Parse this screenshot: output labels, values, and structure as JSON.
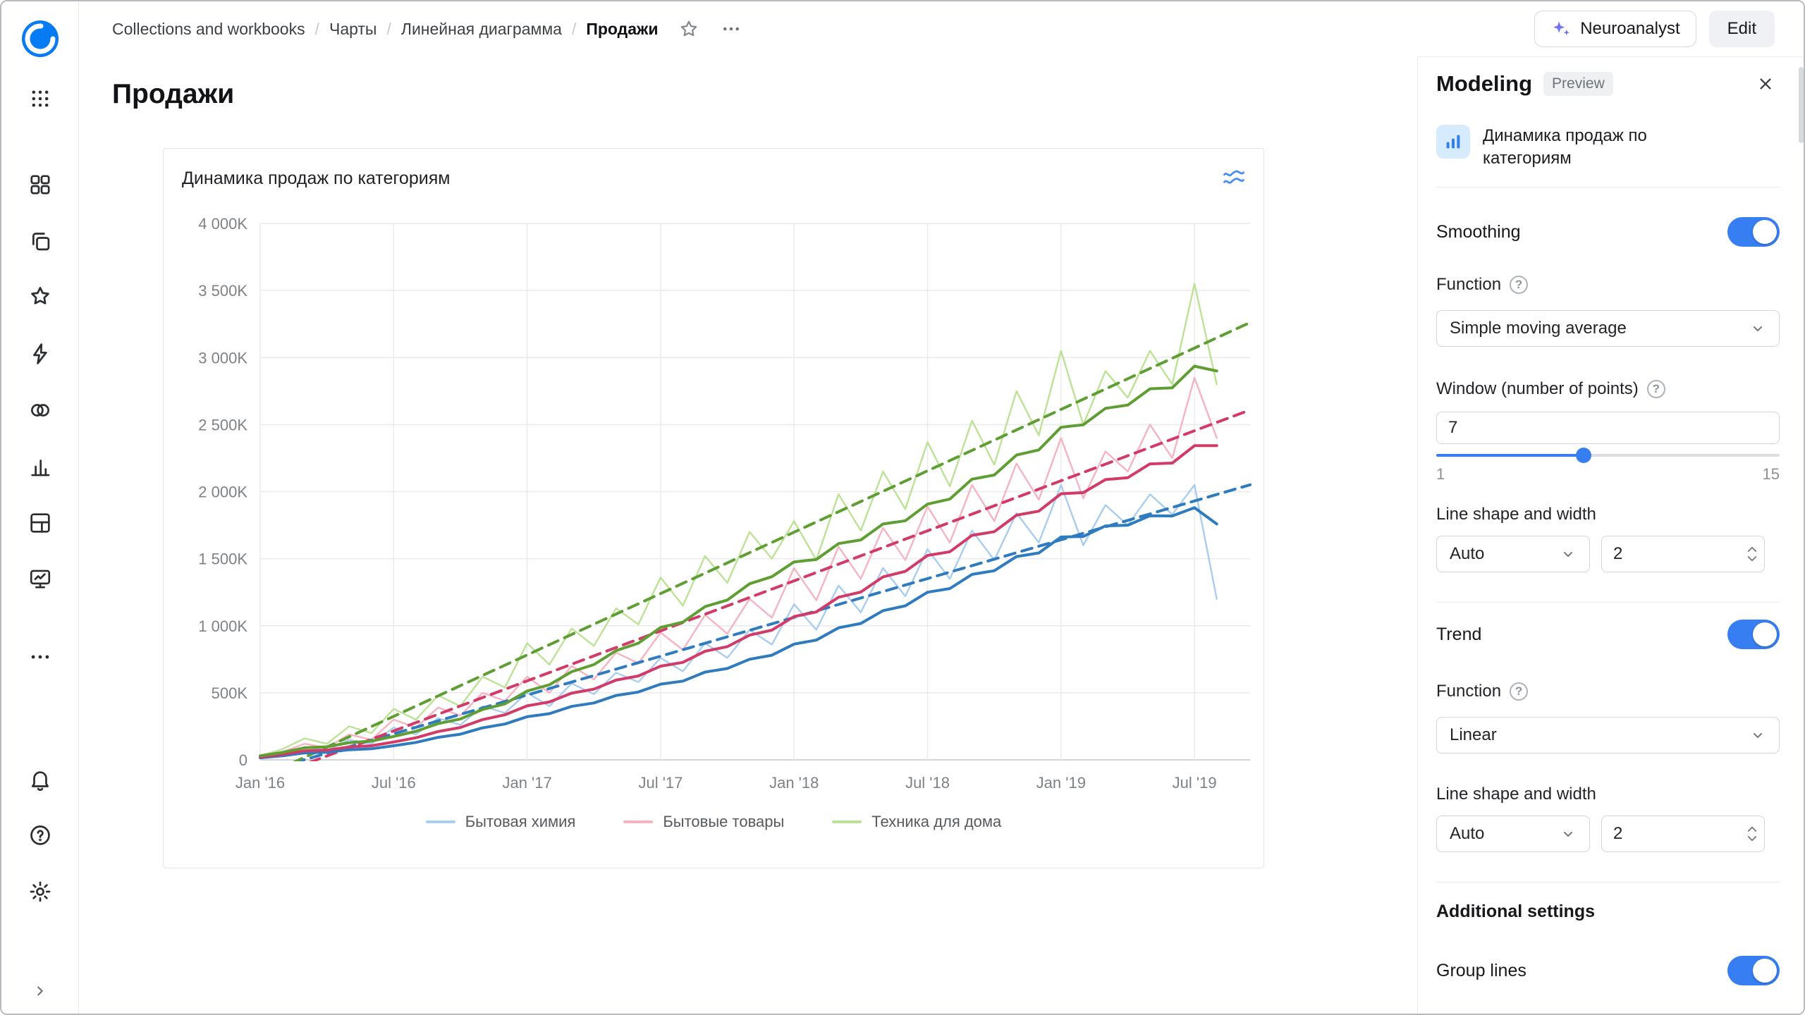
{
  "app": {
    "colors": {
      "accent": "#377ef2",
      "icon_blue": "#2f80ed",
      "divider": "#ececef"
    }
  },
  "sidebar": {
    "nav_icons": [
      "apps-grid",
      "collections",
      "workbooks",
      "favorites",
      "connections",
      "datasets",
      "charts",
      "dashboards",
      "reports",
      "more"
    ],
    "bottom_icons": [
      "notifications",
      "help",
      "settings",
      "collapse"
    ]
  },
  "header": {
    "breadcrumb": [
      "Collections and workbooks",
      "Чарты",
      "Линейная диаграмма",
      "Продажи"
    ],
    "neuroanalyst_label": "Neuroanalyst",
    "edit_label": "Edit"
  },
  "page": {
    "title": "Продажи"
  },
  "chart_data": {
    "type": "line",
    "title": "Динамика продаж по категориям",
    "x_start": "Jan 2016",
    "x_interval": "month",
    "x_tick_labels": [
      "Jan '16",
      "Jul '16",
      "Jan '17",
      "Jul '17",
      "Jan '18",
      "Jul '18",
      "Jan '19",
      "Jul '19"
    ],
    "x_tick_month_indices": [
      0,
      6,
      12,
      18,
      24,
      30,
      36,
      42
    ],
    "x_extent_months": 44.5,
    "y_tick_labels": [
      "0",
      "500K",
      "1 000K",
      "1 500K",
      "2 000K",
      "2 500K",
      "3 000K",
      "3 500K",
      "4 000K"
    ],
    "y_tick_values_k": [
      0,
      500,
      1000,
      1500,
      2000,
      2500,
      3000,
      3500,
      4000
    ],
    "ylim_k": [
      0,
      4000
    ],
    "grid": true,
    "legend_position": "bottom",
    "smoothing": {
      "function": "Simple moving average",
      "window": 7
    },
    "trend": {
      "function": "Linear"
    },
    "series": [
      {
        "name": "Бытовая химия",
        "color": "#a9cdef",
        "color_smoothed": "#2e7bbf",
        "values_k": [
          15,
          45,
          95,
          70,
          150,
          120,
          240,
          190,
          310,
          260,
          400,
          350,
          500,
          400,
          570,
          490,
          650,
          580,
          760,
          660,
          870,
          760,
          970,
          860,
          1160,
          970,
          1300,
          1100,
          1430,
          1220,
          1570,
          1350,
          1710,
          1490,
          1840,
          1620,
          2050,
          1600,
          1900,
          1750,
          1980,
          1830,
          2050,
          1200
        ]
      },
      {
        "name": "Бытовые товары",
        "color": "#f6b3c2",
        "color_smoothed": "#d23b68",
        "values_k": [
          20,
          60,
          120,
          90,
          190,
          150,
          300,
          240,
          390,
          330,
          500,
          440,
          620,
          500,
          700,
          600,
          800,
          720,
          950,
          820,
          1080,
          940,
          1200,
          1060,
          1430,
          1190,
          1590,
          1350,
          1730,
          1490,
          1890,
          1620,
          2050,
          1780,
          2210,
          1940,
          2400,
          1950,
          2300,
          2150,
          2500,
          2250,
          2850,
          2400
        ]
      },
      {
        "name": "Техника для дома",
        "color": "#bde295",
        "color_smoothed": "#5f9e33",
        "values_k": [
          30,
          80,
          160,
          120,
          250,
          200,
          380,
          300,
          480,
          400,
          620,
          540,
          870,
          710,
          980,
          850,
          1130,
          1010,
          1360,
          1150,
          1520,
          1320,
          1700,
          1500,
          1780,
          1490,
          1980,
          1710,
          2150,
          1870,
          2370,
          2040,
          2530,
          2200,
          2750,
          2420,
          3050,
          2500,
          2900,
          2700,
          3050,
          2800,
          3550,
          2800
        ]
      }
    ]
  },
  "panel": {
    "title": "Modeling",
    "badge": "Preview",
    "item": {
      "title": "Динамика продаж по категориям"
    },
    "smoothing": {
      "label": "Smoothing",
      "enabled": true,
      "function_label": "Function",
      "function_value": "Simple moving average",
      "window_label": "Window (number of points)",
      "window_value": "7",
      "window": 7,
      "window_min": 1,
      "window_max": 15,
      "window_min_label": "1",
      "window_max_label": "15",
      "line_label": "Line shape and width",
      "shape_value": "Auto",
      "width_value": "2"
    },
    "trend": {
      "label": "Trend",
      "enabled": true,
      "function_label": "Function",
      "function_value": "Linear",
      "line_label": "Line shape and width",
      "shape_value": "Auto",
      "width_value": "2"
    },
    "additional": {
      "label": "Additional settings",
      "group_lines_label": "Group lines",
      "group_lines_enabled": true
    }
  }
}
